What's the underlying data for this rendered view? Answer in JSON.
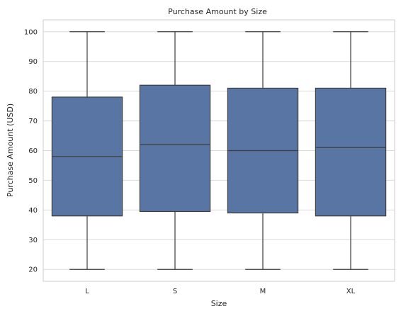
{
  "chart_data": {
    "type": "box",
    "title": "Purchase Amount by Size",
    "xlabel": "Size",
    "ylabel": "Purchase Amount (USD)",
    "ylim": [
      16,
      104
    ],
    "yticks": [
      20,
      30,
      40,
      50,
      60,
      70,
      80,
      90,
      100
    ],
    "grid": "horizontal",
    "categories": [
      "L",
      "S",
      "M",
      "XL"
    ],
    "boxes": [
      {
        "category": "L",
        "min": 20,
        "q1": 38,
        "median": 58,
        "q3": 78,
        "max": 100
      },
      {
        "category": "S",
        "min": 20,
        "q1": 39.5,
        "median": 62,
        "q3": 82,
        "max": 100
      },
      {
        "category": "M",
        "min": 20,
        "q1": 39,
        "median": 60,
        "q3": 81,
        "max": 100
      },
      {
        "category": "XL",
        "min": 20,
        "q1": 38,
        "median": 61,
        "q3": 81,
        "max": 100
      }
    ],
    "colors": {
      "box_fill": "#5975a4",
      "line": "#3d3d3d",
      "grid": "#d9d9d9",
      "frame": "#cccccc"
    }
  }
}
